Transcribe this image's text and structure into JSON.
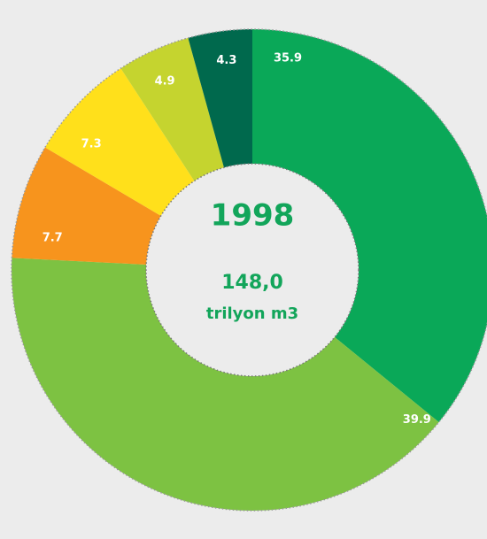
{
  "chart_data": {
    "type": "donut",
    "title": "1998",
    "subtitle": "148,0",
    "unit": "trilyon m3",
    "categories": [
      null,
      null,
      null,
      null,
      null,
      null
    ],
    "values": [
      35.9,
      39.9,
      7.7,
      7.3,
      4.9,
      4.3
    ],
    "colors": [
      "#0aa858",
      "#7dc242",
      "#f7941d",
      "#ffe01b",
      "#c5d42f",
      "#00694d"
    ]
  }
}
